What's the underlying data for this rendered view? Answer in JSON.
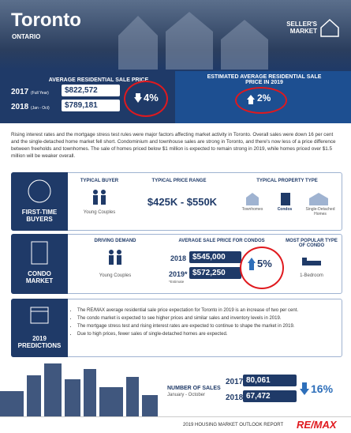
{
  "header": {
    "city": "Toronto",
    "province": "ONTARIO",
    "badge": "SELLER'S MARKET"
  },
  "price": {
    "title": "AVERAGE RESIDENTIAL SALE PRICE",
    "rows": [
      {
        "year": "2017",
        "period": "(Full Year)",
        "value": "$822,572"
      },
      {
        "year": "2018",
        "period": "(Jan - Oct)",
        "value": "$789,181"
      }
    ],
    "change": "4%",
    "estimate_title": "ESTIMATED AVERAGE RESIDENTIAL SALE PRICE IN 2019",
    "estimate_change": "2%"
  },
  "summary": "Rising interest rates and the mortgage stress test rules were major factors affecting market activity in Toronto. Overall sales were down 16 per cent and the single-detached home market fell short. Condominium and townhouse sales are strong in Toronto, and there's now less of a price difference between freeholds and townhomes. The sale of homes priced below $1 million is expected to remain strong in 2019, while homes priced over $1.5 million will be weaker overall.",
  "first_time": {
    "label": "FIRST-TIME BUYERS",
    "buyer_title": "TYPICAL BUYER",
    "buyer": "Young Couples",
    "range_title": "TYPICAL PRICE RANGE",
    "range": "$425K - $550K",
    "type_title": "TYPICAL PROPERTY TYPE",
    "types": [
      "Townhomes",
      "Condos",
      "Single-Detached Homes"
    ]
  },
  "condo": {
    "label": "CONDO MARKET",
    "demand_title": "DRIVING DEMAND",
    "demand": "Young Couples",
    "price_title": "AVERAGE SALE PRICE FOR CONDOS",
    "rows": [
      {
        "year": "2018",
        "value": "$545,000"
      },
      {
        "year": "2019*",
        "value": "$572,250"
      }
    ],
    "note": "*Estimate",
    "change": "5%",
    "popular_title": "MOST POPULAR TYPE OF CONDO",
    "popular": "1-Bedroom"
  },
  "predictions": {
    "label": "2019 PREDICTIONS",
    "items": [
      "The RE/MAX average residential sale price expectation for Toronto in 2019 is an increase of two per cent.",
      "The condo market is expected to see higher prices and similar sales and inventory levels in 2019.",
      "The mortgage stress test and rising interest rates are expected to continue to shape the market in 2019.",
      "Due to high prices, fewer sales of single-detached homes are expected."
    ]
  },
  "sales": {
    "title": "NUMBER OF SALES",
    "period": "January - October",
    "rows": [
      {
        "year": "2017",
        "value": "80,061"
      },
      {
        "year": "2018",
        "value": "67,472"
      }
    ],
    "change": "16%"
  },
  "footer": {
    "report": "2019 HOUSING MARKET OUTLOOK REPORT",
    "brand": "RE/MAX"
  }
}
